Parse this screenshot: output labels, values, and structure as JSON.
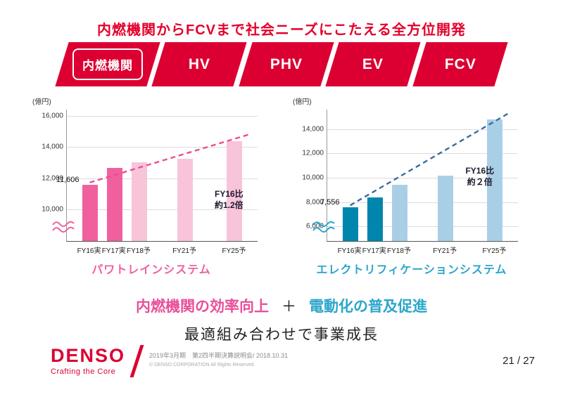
{
  "slide": {
    "title": "内燃機関からFCVまで社会ニーズにこたえる全方位開発"
  },
  "banner": {
    "segments": [
      {
        "label": "内燃機関",
        "highlighted": true
      },
      {
        "label": "HV",
        "highlighted": false
      },
      {
        "label": "PHV",
        "highlighted": false
      },
      {
        "label": "EV",
        "highlighted": false
      },
      {
        "label": "FCV",
        "highlighted": false
      }
    ],
    "color": "#dc0032"
  },
  "chart_data": [
    {
      "type": "bar",
      "title": "パワトレインシステム",
      "unit_label": "(億円)",
      "categories": [
        "FY16実",
        "FY17実",
        "FY18予",
        "FY21予",
        "FY25予"
      ],
      "values": [
        11606,
        12650,
        13050,
        13250,
        14400
      ],
      "bar_colors": [
        "#f0609e",
        "#f0609e",
        "#f8c4da",
        "#f8c4da",
        "#f8c4da"
      ],
      "first_value_label": "11,606",
      "annotation_lines": [
        "FY16比",
        "約1.2倍"
      ],
      "annotation_pos": {
        "x": 0.85,
        "y": 0.6
      },
      "ylim": [
        8000,
        16400
      ],
      "yticks": [
        10000,
        12000,
        14000,
        16000
      ],
      "trend_color": "#ee4b92",
      "accent": "#f0609e",
      "axis_break": true,
      "grid": true,
      "legend_position": "none"
    },
    {
      "type": "bar",
      "title": "エレクトリフィケーションシステム",
      "unit_label": "(億円)",
      "categories": [
        "FY16実",
        "FY17実",
        "FY18予",
        "FY21予",
        "FY25予"
      ],
      "values": [
        7556,
        8400,
        9400,
        10150,
        14800
      ],
      "bar_colors": [
        "#0085ad",
        "#0085ad",
        "#a9cfe7",
        "#a9cfe7",
        "#a9cfe7"
      ],
      "first_value_label": "7,556",
      "annotation_lines": [
        "FY16比",
        "約２倍"
      ],
      "annotation_pos": {
        "x": 0.8,
        "y": 0.42
      },
      "ylim": [
        4800,
        15600
      ],
      "yticks": [
        6000,
        8000,
        10000,
        12000,
        14000
      ],
      "trend_color": "#3a6ca3",
      "accent": "#2ba6cb",
      "axis_break": true,
      "grid": true,
      "legend_position": "none"
    }
  ],
  "message": {
    "left": "内燃機関の効率向上",
    "plus": "＋",
    "right": "電動化の普及促進",
    "subtitle": "最適組み合わせで事業成長"
  },
  "footer": {
    "logo": "DENSO",
    "tagline": "Crafting the Core",
    "line1": "2019年3月期　第2四半期決算説明会/ 2018.10.31",
    "line2": "© DENSO CORPORATION All Rights Reserved.",
    "page": "21 / 27"
  }
}
